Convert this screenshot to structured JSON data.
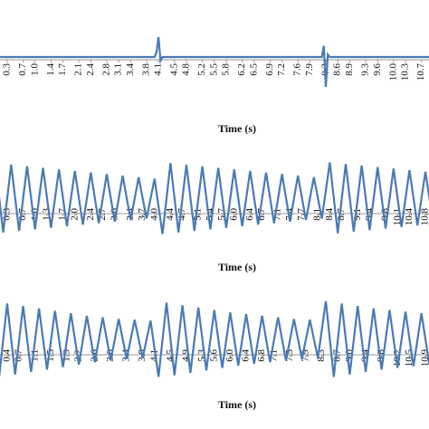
{
  "chart_data": [
    {
      "type": "line",
      "xlabel": "Time (s)",
      "color": "#4a7ab5",
      "xlim": [
        0.12,
        10.89
      ],
      "ylim": [
        -1.2,
        1.2
      ],
      "xticks": [
        0.3,
        0.7,
        {
          "value": 1,
          "label": "1.0"
        },
        1.4,
        1.7,
        2.1,
        2.4,
        2.8,
        3.1,
        3.4,
        3.8,
        4.1,
        4.5,
        4.8,
        5.2,
        5.5,
        5.8,
        6.2,
        6.5,
        6.9,
        7.2,
        7.6,
        7.9,
        8.3,
        8.6,
        8.9,
        9.3,
        9.6,
        {
          "value": 10,
          "label": "10.0"
        },
        10.3,
        10.7
      ],
      "x": [
        0,
        4.0,
        4.05,
        4.1,
        4.15,
        4.2,
        8.2,
        8.25,
        8.3,
        8.35,
        8.4,
        11.0
      ],
      "values": [
        0,
        0,
        0.2,
        0.8,
        -0.15,
        0,
        0,
        0.45,
        -1.2,
        0.1,
        0,
        0
      ]
    },
    {
      "type": "line",
      "xlabel": "Time (s)",
      "color": "#4a7ab5",
      "xlim": [
        0.12,
        10.89
      ],
      "ylim": [
        -1,
        1
      ],
      "xticks": [
        0.3,
        0.7,
        {
          "value": 1,
          "label": "1.0"
        },
        1.3,
        1.7,
        {
          "value": 2,
          "label": "2.0"
        },
        2.4,
        2.7,
        {
          "value": 3,
          "label": "3.0"
        },
        3.4,
        3.7,
        {
          "value": 4,
          "label": "4.0"
        },
        4.4,
        4.7,
        5.1,
        5.4,
        5.7,
        {
          "value": 6,
          "label": "6.0"
        },
        6.4,
        6.7,
        7.1,
        7.4,
        7.7,
        8.1,
        8.4,
        8.7,
        9.1,
        9.4,
        9.8,
        10.1,
        10.4,
        10.8
      ],
      "x": [
        0,
        0.2,
        0.4,
        0.6,
        0.8,
        1.0,
        1.2,
        1.4,
        1.6,
        1.8,
        2.0,
        2.2,
        2.4,
        2.6,
        2.8,
        3.0,
        3.2,
        3.4,
        3.6,
        3.8,
        4.0,
        4.2,
        4.4,
        4.6,
        4.8,
        5.0,
        5.2,
        5.4,
        5.6,
        5.8,
        6.0,
        6.2,
        6.4,
        6.6,
        6.8,
        7.0,
        7.2,
        7.4,
        7.6,
        7.8,
        8.0,
        8.2,
        8.4,
        8.6,
        8.8,
        9.0,
        9.2,
        9.4,
        9.6,
        9.8,
        10.0,
        10.2,
        10.4,
        10.6,
        10.8,
        11.0
      ],
      "values": [
        0.9,
        -0.88,
        0.86,
        -0.84,
        0.82,
        -0.8,
        0.78,
        -0.76,
        0.74,
        -0.72,
        0.7,
        -0.68,
        0.66,
        -0.64,
        0.62,
        -0.6,
        0.58,
        -0.56,
        0.54,
        -0.52,
        0.5,
        -0.92,
        0.9,
        -0.88,
        0.86,
        -0.84,
        0.82,
        -0.8,
        0.78,
        -0.76,
        0.74,
        -0.72,
        0.7,
        -0.68,
        0.66,
        -0.64,
        0.62,
        -0.6,
        0.58,
        -0.56,
        0.54,
        -0.52,
        0.92,
        -0.9,
        0.88,
        -0.86,
        0.84,
        -0.82,
        0.8,
        -0.78,
        0.76,
        -0.74,
        0.72,
        -0.7,
        0.68,
        -0.66
      ]
    },
    {
      "type": "line",
      "xlabel": "Time (s)",
      "color": "#4a7ab5",
      "xlim": [
        0.22,
        10.99
      ],
      "ylim": [
        -1,
        1
      ],
      "xticks": [
        0.4,
        0.7,
        1.1,
        1.5,
        1.9,
        2.2,
        2.6,
        {
          "value": 3,
          "label": "3.0"
        },
        3.4,
        3.8,
        4.1,
        4.5,
        4.9,
        5.3,
        5.6,
        {
          "value": 6,
          "label": "6.0"
        },
        6.4,
        6.8,
        7.1,
        7.5,
        7.9,
        8.3,
        8.7,
        {
          "value": 9,
          "label": "9.0"
        },
        9.4,
        9.8,
        10.2,
        10.5,
        10.9
      ],
      "x": [
        0,
        0.2,
        0.4,
        0.6,
        0.8,
        1.0,
        1.2,
        1.4,
        1.6,
        1.8,
        2.0,
        2.2,
        2.4,
        2.6,
        2.8,
        3.0,
        3.2,
        3.4,
        3.6,
        3.8,
        4.0,
        4.2,
        4.4,
        4.6,
        4.8,
        5.0,
        5.2,
        5.4,
        5.6,
        5.8,
        6.0,
        6.2,
        6.4,
        6.6,
        6.8,
        7.0,
        7.2,
        7.4,
        7.6,
        7.8,
        8.0,
        8.2,
        8.4,
        8.6,
        8.8,
        9.0,
        9.2,
        9.4,
        9.6,
        9.8,
        10.0,
        10.2,
        10.4,
        10.6,
        10.8,
        11.0
      ],
      "values": [
        0.92,
        -0.9,
        0.88,
        -0.86,
        0.82,
        -0.8,
        0.76,
        -0.74,
        0.7,
        -0.68,
        0.64,
        -0.62,
        0.58,
        -0.56,
        0.54,
        -0.52,
        0.5,
        -0.48,
        0.48,
        -0.46,
        0.46,
        -0.92,
        0.9,
        -0.88,
        0.84,
        -0.82,
        0.78,
        -0.76,
        0.72,
        -0.7,
        0.66,
        -0.64,
        0.62,
        -0.6,
        0.58,
        -0.56,
        0.54,
        -0.52,
        0.5,
        -0.48,
        0.48,
        -0.46,
        0.94,
        -0.92,
        0.88,
        -0.86,
        0.82,
        -0.8,
        0.76,
        -0.74,
        0.72,
        -0.7,
        0.68,
        -0.66,
        0.64,
        -0.62
      ]
    }
  ]
}
